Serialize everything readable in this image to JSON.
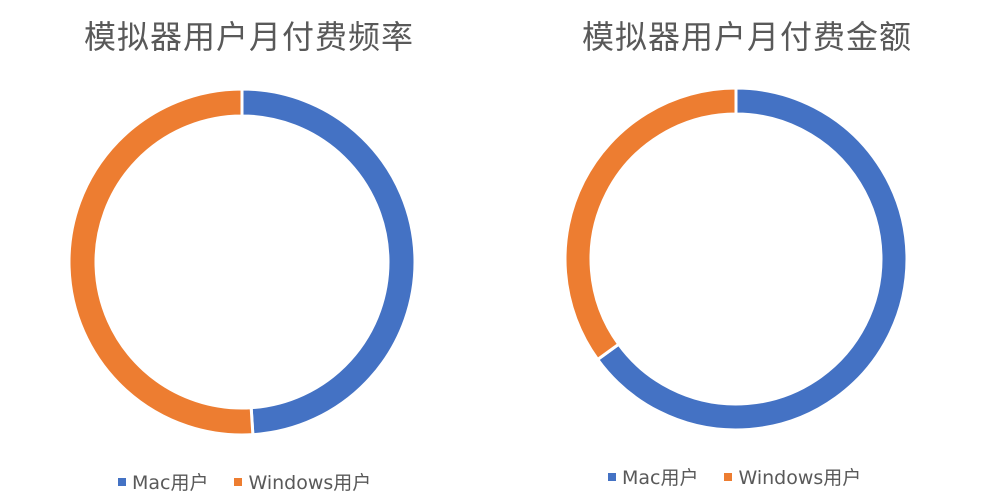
{
  "chart_data": [
    {
      "type": "pie",
      "title": "模拟器用户月付费频率",
      "categories": [
        "Mac用户",
        "Windows用户"
      ],
      "values": [
        49,
        51
      ],
      "colors": [
        "#4472C4",
        "#ED7D31"
      ],
      "legend": "bottom"
    },
    {
      "type": "pie",
      "title": "模拟器用户月付费金额",
      "categories": [
        "Mac用户",
        "Windows用户"
      ],
      "values": [
        65,
        35
      ],
      "colors": [
        "#4472C4",
        "#ED7D31"
      ],
      "legend": "bottom"
    }
  ]
}
